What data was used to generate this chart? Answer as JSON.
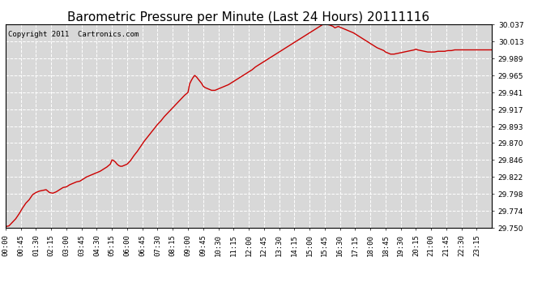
{
  "title": "Barometric Pressure per Minute (Last 24 Hours) 20111116",
  "copyright": "Copyright 2011  Cartronics.com",
  "line_color": "#cc0000",
  "background_color": "#ffffff",
  "plot_bg_color": "#d8d8d8",
  "grid_color": "#ffffff",
  "ylim": [
    29.75,
    30.037
  ],
  "yticks": [
    29.75,
    29.774,
    29.798,
    29.822,
    29.846,
    29.87,
    29.893,
    29.917,
    29.941,
    29.965,
    29.989,
    30.013,
    30.037
  ],
  "xtick_labels": [
    "00:00",
    "00:45",
    "01:30",
    "02:15",
    "03:00",
    "03:45",
    "04:30",
    "05:15",
    "06:00",
    "06:45",
    "07:30",
    "08:15",
    "09:00",
    "09:45",
    "10:30",
    "11:15",
    "12:00",
    "12:45",
    "13:30",
    "14:15",
    "15:00",
    "15:45",
    "16:30",
    "17:15",
    "18:00",
    "18:45",
    "19:30",
    "20:15",
    "21:00",
    "21:45",
    "22:30",
    "23:15"
  ],
  "title_fontsize": 11,
  "copyright_fontsize": 6.5,
  "tick_fontsize": 6.5,
  "line_width": 1.0,
  "data_points": [
    [
      0,
      29.752
    ],
    [
      10,
      29.753
    ],
    [
      20,
      29.758
    ],
    [
      30,
      29.763
    ],
    [
      40,
      29.77
    ],
    [
      50,
      29.778
    ],
    [
      60,
      29.785
    ],
    [
      70,
      29.79
    ],
    [
      80,
      29.797
    ],
    [
      90,
      29.8
    ],
    [
      100,
      29.802
    ],
    [
      110,
      29.803
    ],
    [
      120,
      29.804
    ],
    [
      130,
      29.8
    ],
    [
      140,
      29.799
    ],
    [
      150,
      29.801
    ],
    [
      160,
      29.804
    ],
    [
      170,
      29.807
    ],
    [
      180,
      29.808
    ],
    [
      190,
      29.811
    ],
    [
      200,
      29.813
    ],
    [
      210,
      29.815
    ],
    [
      220,
      29.816
    ],
    [
      230,
      29.819
    ],
    [
      240,
      29.822
    ],
    [
      250,
      29.824
    ],
    [
      260,
      29.826
    ],
    [
      270,
      29.828
    ],
    [
      280,
      29.83
    ],
    [
      290,
      29.833
    ],
    [
      300,
      29.836
    ],
    [
      310,
      29.84
    ],
    [
      315,
      29.846
    ],
    [
      320,
      29.845
    ],
    [
      325,
      29.843
    ],
    [
      330,
      29.84
    ],
    [
      335,
      29.838
    ],
    [
      340,
      29.837
    ],
    [
      345,
      29.837
    ],
    [
      350,
      29.838
    ],
    [
      360,
      29.84
    ],
    [
      370,
      29.845
    ],
    [
      380,
      29.852
    ],
    [
      390,
      29.858
    ],
    [
      400,
      29.865
    ],
    [
      410,
      29.872
    ],
    [
      420,
      29.878
    ],
    [
      430,
      29.884
    ],
    [
      440,
      29.89
    ],
    [
      450,
      29.896
    ],
    [
      460,
      29.901
    ],
    [
      470,
      29.907
    ],
    [
      480,
      29.912
    ],
    [
      490,
      29.917
    ],
    [
      500,
      29.922
    ],
    [
      510,
      29.927
    ],
    [
      520,
      29.932
    ],
    [
      530,
      29.937
    ],
    [
      540,
      29.941
    ],
    [
      545,
      29.953
    ],
    [
      550,
      29.958
    ],
    [
      555,
      29.962
    ],
    [
      560,
      29.965
    ],
    [
      565,
      29.963
    ],
    [
      570,
      29.96
    ],
    [
      575,
      29.957
    ],
    [
      580,
      29.954
    ],
    [
      585,
      29.95
    ],
    [
      590,
      29.948
    ],
    [
      595,
      29.947
    ],
    [
      600,
      29.946
    ],
    [
      605,
      29.945
    ],
    [
      610,
      29.944
    ],
    [
      615,
      29.944
    ],
    [
      620,
      29.944
    ],
    [
      625,
      29.945
    ],
    [
      630,
      29.946
    ],
    [
      640,
      29.948
    ],
    [
      650,
      29.95
    ],
    [
      660,
      29.952
    ],
    [
      670,
      29.955
    ],
    [
      680,
      29.958
    ],
    [
      690,
      29.961
    ],
    [
      700,
      29.964
    ],
    [
      710,
      29.967
    ],
    [
      720,
      29.97
    ],
    [
      730,
      29.973
    ],
    [
      740,
      29.977
    ],
    [
      750,
      29.98
    ],
    [
      760,
      29.983
    ],
    [
      770,
      29.986
    ],
    [
      780,
      29.989
    ],
    [
      790,
      29.992
    ],
    [
      800,
      29.995
    ],
    [
      810,
      29.998
    ],
    [
      820,
      30.001
    ],
    [
      830,
      30.004
    ],
    [
      840,
      30.007
    ],
    [
      850,
      30.01
    ],
    [
      860,
      30.013
    ],
    [
      870,
      30.016
    ],
    [
      880,
      30.019
    ],
    [
      890,
      30.022
    ],
    [
      900,
      30.025
    ],
    [
      910,
      30.028
    ],
    [
      920,
      30.031
    ],
    [
      930,
      30.034
    ],
    [
      940,
      30.037
    ],
    [
      950,
      30.037
    ],
    [
      960,
      30.036
    ],
    [
      970,
      30.034
    ],
    [
      975,
      30.032
    ],
    [
      980,
      30.033
    ],
    [
      985,
      30.034
    ],
    [
      990,
      30.033
    ],
    [
      995,
      30.032
    ],
    [
      1000,
      30.031
    ],
    [
      1010,
      30.029
    ],
    [
      1020,
      30.027
    ],
    [
      1030,
      30.025
    ],
    [
      1040,
      30.022
    ],
    [
      1050,
      30.019
    ],
    [
      1060,
      30.016
    ],
    [
      1070,
      30.013
    ],
    [
      1080,
      30.01
    ],
    [
      1090,
      30.007
    ],
    [
      1100,
      30.004
    ],
    [
      1110,
      30.002
    ],
    [
      1120,
      30.0
    ],
    [
      1125,
      29.998
    ],
    [
      1130,
      29.997
    ],
    [
      1135,
      29.996
    ],
    [
      1140,
      29.995
    ],
    [
      1150,
      29.995
    ],
    [
      1160,
      29.996
    ],
    [
      1170,
      29.997
    ],
    [
      1180,
      29.998
    ],
    [
      1190,
      29.999
    ],
    [
      1200,
      30.0
    ],
    [
      1210,
      30.001
    ],
    [
      1215,
      30.002
    ],
    [
      1220,
      30.001
    ],
    [
      1230,
      30.0
    ],
    [
      1240,
      29.999
    ],
    [
      1250,
      29.998
    ],
    [
      1260,
      29.998
    ],
    [
      1270,
      29.998
    ],
    [
      1280,
      29.999
    ],
    [
      1290,
      29.999
    ],
    [
      1300,
      29.999
    ],
    [
      1310,
      30.0
    ],
    [
      1320,
      30.0
    ],
    [
      1330,
      30.001
    ],
    [
      1340,
      30.001
    ],
    [
      1350,
      30.001
    ],
    [
      1360,
      30.001
    ],
    [
      1370,
      30.001
    ],
    [
      1380,
      30.001
    ],
    [
      1390,
      30.001
    ],
    [
      1400,
      30.001
    ],
    [
      1410,
      30.001
    ],
    [
      1420,
      30.001
    ],
    [
      1430,
      30.001
    ],
    [
      1440,
      30.001
    ]
  ]
}
